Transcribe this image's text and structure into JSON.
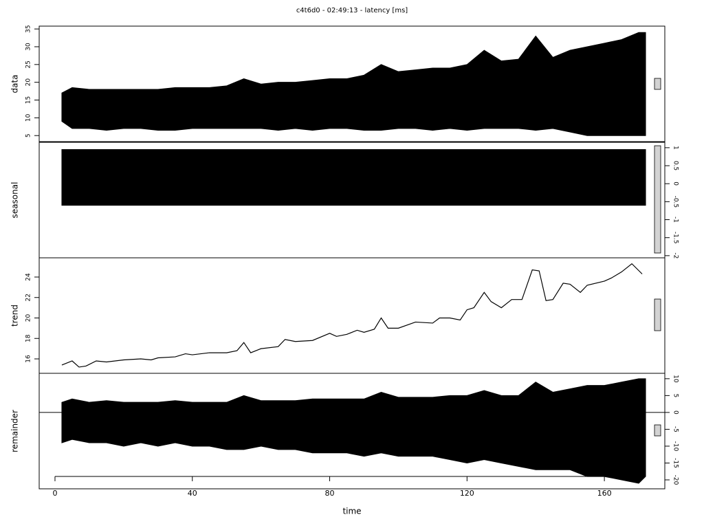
{
  "title": "c4t6d0 - 02:49:13 - latency [ms]",
  "xlabel": "time",
  "xlim": [
    -4.6,
    177.6
  ],
  "xticks": [
    0,
    40,
    80,
    120,
    160
  ],
  "chart_data": [
    {
      "type": "band",
      "ylabel": "data",
      "axis_side": "left",
      "color": "#000000",
      "ylim": [
        3.3,
        35.8
      ],
      "yticks": [
        5,
        10,
        15,
        20,
        25,
        30,
        35
      ],
      "x": [
        2,
        5,
        10,
        15,
        20,
        25,
        30,
        35,
        40,
        45,
        50,
        55,
        60,
        65,
        70,
        75,
        80,
        85,
        90,
        95,
        100,
        105,
        110,
        115,
        120,
        125,
        130,
        135,
        140,
        145,
        150,
        155,
        160,
        165,
        170,
        172
      ],
      "upper": [
        17,
        18.5,
        18,
        18,
        18,
        18,
        18,
        18.5,
        18.5,
        18.5,
        19,
        21,
        19.5,
        20,
        20,
        20.5,
        21,
        21,
        22,
        25,
        23,
        23.5,
        24,
        24,
        25,
        29,
        26,
        26.5,
        33,
        27,
        29,
        30,
        31,
        32,
        34,
        34
      ],
      "lower": [
        9,
        7,
        7,
        6.5,
        7,
        7,
        6.5,
        6.5,
        7,
        7,
        7,
        7,
        7,
        6.5,
        7,
        6.5,
        7,
        7,
        6.5,
        6.5,
        7,
        7,
        6.5,
        7,
        6.5,
        7,
        7,
        7,
        6.5,
        7,
        6,
        5,
        5,
        5,
        5,
        5
      ]
    },
    {
      "type": "band",
      "ylabel": "seasonal",
      "axis_side": "right",
      "color": "#000000",
      "ylim": [
        -2.06,
        1.15
      ],
      "yticks": [
        -2,
        -1.5,
        -1,
        -0.5,
        0,
        0.5,
        1
      ],
      "x": [
        2,
        172
      ],
      "upper": [
        0.95,
        0.95
      ],
      "lower": [
        -0.6,
        -0.6
      ]
    },
    {
      "type": "line",
      "ylabel": "trend",
      "axis_side": "left",
      "color": "#000000",
      "ylim": [
        14.59,
        25.88
      ],
      "yticks": [
        16,
        18,
        20,
        22,
        24
      ],
      "x": [
        2,
        5,
        7,
        9,
        12,
        15,
        20,
        25,
        28,
        30,
        35,
        38,
        40,
        45,
        50,
        53,
        55,
        57,
        60,
        65,
        67,
        70,
        75,
        80,
        82,
        85,
        88,
        90,
        93,
        95,
        97,
        100,
        105,
        110,
        112,
        115,
        118,
        120,
        122,
        125,
        127,
        130,
        133,
        136,
        139,
        141,
        143,
        145,
        148,
        150,
        153,
        155,
        160,
        162,
        165,
        168,
        171
      ],
      "values": [
        15.4,
        15.8,
        15.2,
        15.3,
        15.8,
        15.7,
        15.9,
        16,
        15.9,
        16.1,
        16.2,
        16.5,
        16.4,
        16.6,
        16.6,
        16.8,
        17.6,
        16.6,
        17,
        17.2,
        17.9,
        17.7,
        17.8,
        18.5,
        18.2,
        18.4,
        18.8,
        18.6,
        18.9,
        20,
        19,
        19,
        19.6,
        19.5,
        20,
        20,
        19.8,
        20.8,
        21,
        22.5,
        21.6,
        21,
        21.8,
        21.8,
        24.7,
        24.6,
        21.7,
        21.8,
        23.4,
        23.3,
        22.5,
        23.2,
        23.6,
        23.9,
        24.5,
        25.3,
        24.3
      ]
    },
    {
      "type": "band",
      "ylabel": "remainder",
      "axis_side": "right",
      "color": "#000000",
      "hline": 0,
      "ylim": [
        -22.65,
        11.6
      ],
      "yticks": [
        -20,
        -15,
        -10,
        -5,
        0,
        5,
        10
      ],
      "x": [
        2,
        5,
        10,
        15,
        20,
        25,
        30,
        35,
        40,
        45,
        50,
        55,
        60,
        65,
        70,
        75,
        80,
        85,
        90,
        95,
        100,
        105,
        110,
        115,
        120,
        125,
        130,
        135,
        140,
        145,
        150,
        155,
        160,
        165,
        170,
        172
      ],
      "upper": [
        3,
        4,
        3,
        3.5,
        3,
        3,
        3,
        3.5,
        3,
        3,
        3,
        5,
        3.5,
        3.5,
        3.5,
        4,
        4,
        4,
        4,
        6,
        4.5,
        4.5,
        4.5,
        5,
        5,
        6.5,
        5,
        5,
        9,
        6,
        7,
        8,
        8,
        9,
        10,
        10
      ],
      "lower": [
        -9,
        -8,
        -9,
        -9,
        -10,
        -9,
        -10,
        -9,
        -10,
        -10,
        -11,
        -11,
        -10,
        -11,
        -11,
        -12,
        -12,
        -12,
        -13,
        -12,
        -13,
        -13,
        -13,
        -14,
        -15,
        -14,
        -15,
        -16,
        -17,
        -17,
        -17,
        -19,
        -19,
        -20,
        -21,
        -19
      ]
    }
  ]
}
